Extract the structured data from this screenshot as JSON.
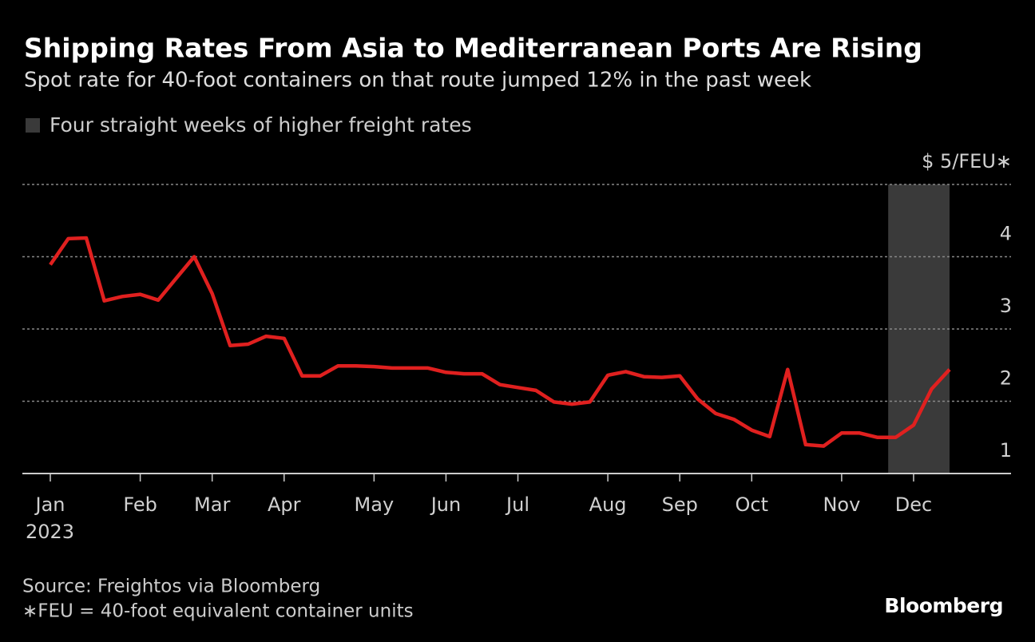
{
  "chart_data": {
    "type": "line",
    "title": "Shipping Rates From Asia to Mediterranean Ports Are Rising",
    "subtitle": "Spot rate for 40-foot containers on that route jumped 12% in the past week",
    "categories": [
      "Jan",
      null,
      null,
      null,
      null,
      "Feb",
      null,
      null,
      null,
      "Mar",
      null,
      null,
      null,
      "Apr",
      null,
      null,
      null,
      null,
      "May",
      null,
      null,
      null,
      "Jun",
      null,
      null,
      null,
      "Jul",
      null,
      null,
      null,
      null,
      "Aug",
      null,
      null,
      null,
      "Sep",
      null,
      null,
      null,
      "Oct",
      null,
      null,
      null,
      null,
      "Nov",
      null,
      null,
      null,
      "Dec",
      null,
      null
    ],
    "year_label": "2023",
    "series": [
      {
        "name": "Spot rate",
        "color": "#e0201f",
        "values": [
          3.89,
          4.25,
          4.26,
          3.39,
          3.45,
          3.48,
          3.4,
          3.7,
          4.0,
          3.49,
          2.77,
          2.79,
          2.9,
          2.87,
          2.35,
          2.35,
          2.49,
          2.49,
          2.48,
          2.46,
          2.46,
          2.46,
          2.4,
          2.38,
          2.38,
          2.23,
          2.19,
          2.15,
          1.99,
          1.96,
          1.99,
          2.36,
          2.41,
          2.34,
          2.33,
          2.35,
          2.03,
          1.83,
          1.75,
          1.6,
          1.51,
          2.44,
          1.4,
          1.38,
          1.56,
          1.56,
          1.5,
          1.5,
          1.67,
          2.17,
          2.44
        ]
      }
    ],
    "highlight": {
      "label": "Four straight weeks of higher freight rates",
      "start": 47,
      "end": 50,
      "color": "#3a3a3a"
    },
    "ylim": [
      1,
      5
    ],
    "yticks": [
      1,
      2,
      3,
      4,
      {
        "value": 5,
        "label": "$ 5/FEU∗"
      }
    ],
    "grid": true,
    "source": "Source: Freightos via Bloomberg",
    "note": "∗FEU = 40-foot equivalent container units",
    "brand": "Bloomberg"
  }
}
